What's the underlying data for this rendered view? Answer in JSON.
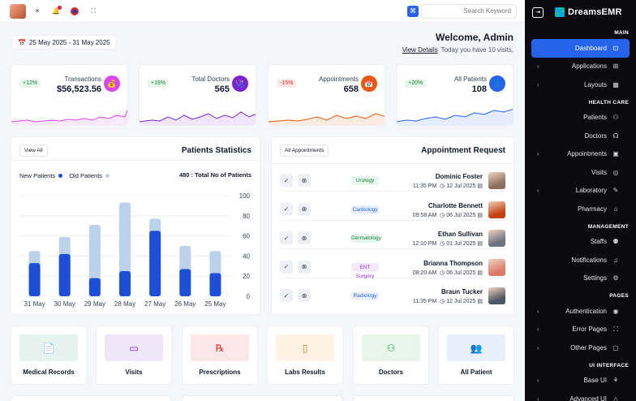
{
  "topbar": {
    "search_placeholder": "Search Keyword",
    "icons": [
      "avatar",
      "sun-icon",
      "bell-icon",
      "flag-icon",
      "fullscreen-icon",
      "search-icon"
    ]
  },
  "header": {
    "date_range": "25 May 2025 - 31 May 2025",
    "welcome": "Welcome, Admin",
    "view_details": "View Details",
    "subtitle": "Today you have 10 visits,"
  },
  "stats": [
    {
      "label": "Transactions",
      "value": "$56,523.56",
      "change": "+12%",
      "trend": "up",
      "color": "#d946ef"
    },
    {
      "label": "Total Doctors",
      "value": "565",
      "change": "+18%",
      "trend": "up",
      "color": "#7e22ce"
    },
    {
      "label": "Appointments",
      "value": "658",
      "change": "-15%",
      "trend": "down",
      "color": "#ea580c"
    },
    {
      "label": "All Patients",
      "value": "108",
      "change": "+20%",
      "trend": "up",
      "color": "#2563eb"
    }
  ],
  "patients_stats": {
    "title": "Patients Statistics",
    "view_all": "View All",
    "legend_new": "New Patients",
    "legend_old": "Old Patients",
    "total": "480 : Total No of Patients",
    "colors": {
      "new": "#1d4ed8",
      "old": "#bcd2ea"
    }
  },
  "chart_data": {
    "type": "bar",
    "categories": [
      "31 May",
      "30 May",
      "29 May",
      "28 May",
      "27 May",
      "26 May",
      "25 May"
    ],
    "series": [
      {
        "name": "New Patients",
        "values": [
          33,
          42,
          18,
          25,
          65,
          27,
          23
        ]
      },
      {
        "name": "Old Patients",
        "values": [
          45,
          59,
          71,
          93,
          77,
          50,
          45
        ]
      }
    ],
    "yticks": [
      "100",
      "80",
      "60",
      "40",
      "20",
      "0"
    ],
    "ylim": [
      0,
      100
    ]
  },
  "appointments": {
    "title": "Appointment Request",
    "filter": "All Appointments",
    "rows": [
      {
        "name": "Dominic Foster",
        "time": "11:35 PM",
        "date": "12 Jul 2025",
        "dept": "Urology",
        "dept_bg": "#e7f6ec",
        "dept_fg": "#15803d",
        "avatar": "#8a6f5c"
      },
      {
        "name": "Charlotte Bennett",
        "time": "09:58 AM",
        "date": "06 Jul 2025",
        "dept": "Cardiology",
        "dept_bg": "#e8f1fb",
        "dept_fg": "#2563eb",
        "avatar": "#c2410c"
      },
      {
        "name": "Ethan Sullivan",
        "time": "12:10 PM",
        "date": "01 Jul 2025",
        "dept": "Dermatology",
        "dept_bg": "#e7f6ec",
        "dept_fg": "#15803d",
        "avatar": "#6b7280"
      },
      {
        "name": "Brianna Thompson",
        "time": "08:20 AM",
        "date": "06 Jul 2025",
        "dept": "ENT Surgery",
        "dept_bg": "#f4e9fb",
        "dept_fg": "#9333ea",
        "avatar": "#dc7a6a"
      },
      {
        "name": "Braun Tucker",
        "time": "11:35 PM",
        "date": "12 Jul 2025",
        "dept": "Radiology",
        "dept_bg": "#e8f1fb",
        "dept_fg": "#2563eb",
        "avatar": "#4b5563"
      }
    ]
  },
  "tiles": [
    {
      "label": "Medical Records",
      "icon": "📄",
      "bg": "#e5f2ee",
      "fg": "#0f766e"
    },
    {
      "label": "Visits",
      "icon": "▭",
      "bg": "#efe7f8",
      "fg": "#7e22ce"
    },
    {
      "label": "Prescriptions",
      "icon": "℞",
      "bg": "#fbe7e7",
      "fg": "#dc2626"
    },
    {
      "label": "Labs Results",
      "icon": "▯",
      "bg": "#fdf2e3",
      "fg": "#d97706"
    },
    {
      "label": "Doctors",
      "icon": "⚇",
      "bg": "#e7f5ea",
      "fg": "#16a34a"
    },
    {
      "label": "All Patient",
      "icon": "👥",
      "bg": "#e6effa",
      "fg": "#2563eb"
    }
  ],
  "sidebar": {
    "brand": "DreamsEMR",
    "sections": [
      {
        "title": "MAIN",
        "items": [
          {
            "label": "Dashboard",
            "icon": "⊡",
            "active": true,
            "chevron": false
          },
          {
            "label": "Applications",
            "icon": "⊞",
            "chevron": true
          },
          {
            "label": "Layouts",
            "icon": "▦",
            "chevron": true
          }
        ]
      },
      {
        "title": "HEALTH CARE",
        "items": [
          {
            "label": "Patients",
            "icon": "⚇",
            "chevron": false
          },
          {
            "label": "Doctors",
            "icon": "☊",
            "chevron": false
          },
          {
            "label": "Appointments",
            "icon": "▣",
            "chevron": true
          },
          {
            "label": "Visits",
            "icon": "◎",
            "chevron": false
          },
          {
            "label": "Laboratory",
            "icon": "✎",
            "chevron": true
          },
          {
            "label": "Pharmacy",
            "icon": "⌂",
            "chevron": false
          }
        ]
      },
      {
        "title": "MANAGEMENT",
        "items": [
          {
            "label": "Staffs",
            "icon": "⚉",
            "chevron": false
          },
          {
            "label": "Notifications",
            "icon": "♫",
            "chevron": false
          },
          {
            "label": "Settings",
            "icon": "⚙",
            "chevron": false
          }
        ]
      },
      {
        "title": "PAGES",
        "items": [
          {
            "label": "Authentication",
            "icon": "◉",
            "chevron": true
          },
          {
            "label": "Error Pages",
            "icon": "⛶",
            "chevron": true
          },
          {
            "label": "Other Pages",
            "icon": "▢",
            "chevron": true
          }
        ]
      },
      {
        "title": "UI INTERFACE",
        "items": [
          {
            "label": "Base UI",
            "icon": "⚘",
            "chevron": true
          },
          {
            "label": "Advanced UI",
            "icon": "△",
            "chevron": true
          }
        ]
      }
    ]
  }
}
